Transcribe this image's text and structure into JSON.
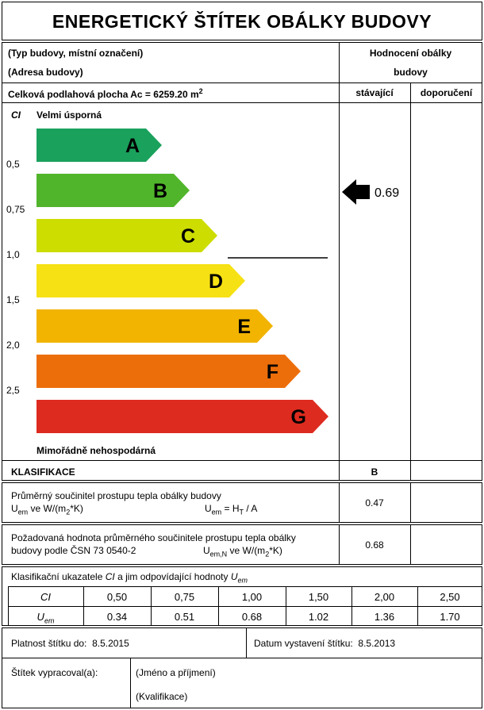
{
  "title": "ENERGETICKÝ ŠTÍTEK OBÁLKY BUDOVY",
  "header": {
    "building_type": "(Typ budovy, místní označení)",
    "address": "(Adresa budovy)",
    "floor_area": "Celková podlahová plocha Ac = 6259.20 m",
    "floor_area_sup": "2",
    "rating_header_1": "Hodnocení obálky",
    "rating_header_2": "budovy",
    "col_current": "stávající",
    "col_recommended": "doporučení"
  },
  "scale": {
    "ci_label": "CI",
    "top_label": "Velmi úsporná",
    "bottom_label": "Mimořádně nehospodárná",
    "ticks": [
      "0,5",
      "0,75",
      "1,0",
      "1,5",
      "2,0",
      "2,5"
    ],
    "classes": [
      {
        "letter": "A",
        "color": "#1aa15c"
      },
      {
        "letter": "B",
        "color": "#51b52b"
      },
      {
        "letter": "C",
        "color": "#cddd00"
      },
      {
        "letter": "D",
        "color": "#f6e114"
      },
      {
        "letter": "E",
        "color": "#f2b400"
      },
      {
        "letter": "F",
        "color": "#ec6e0b"
      },
      {
        "letter": "G",
        "color": "#de2b1f"
      }
    ],
    "current_value": "0.69",
    "current_class": "B"
  },
  "classification": {
    "label": "KLASIFIKACE",
    "current": "B"
  },
  "avg_u": {
    "line1": "Průměrný součinitel prostupu tepla obálky budovy",
    "u": "U",
    "em": "em",
    "units": " ve W/(m",
    "sq": "2",
    "units_end": "*K)",
    "formula_u": "U",
    "formula_em": "em",
    "formula_eq": " = H",
    "formula_t": "T",
    "formula_end": " / A",
    "value": "0.47"
  },
  "req_u": {
    "line1": "Požadovaná hodnota průměrného součinitele prostupu tepla obálky",
    "line2": "budovy podle ČSN 73 0540-2",
    "u": "U",
    "em": "em,N",
    "units": " ve W/(m",
    "sq": "2",
    "units_end": "*K)",
    "value": "0.68"
  },
  "class_table": {
    "caption_a": "Klasifikační ukazatele ",
    "caption_ci": "CI",
    "caption_b": " a jim odpovídající hodnoty ",
    "caption_u": "U",
    "caption_em": "em",
    "row1_label": "CI",
    "row2_label_u": "U",
    "row2_label_em": "em",
    "ci": [
      "0,50",
      "0,75",
      "1,00",
      "1,50",
      "2,00",
      "2,50"
    ],
    "uem": [
      "0.34",
      "0.51",
      "0.68",
      "1.02",
      "1.36",
      "1.70"
    ]
  },
  "footer": {
    "validity_label": "Platnost štítku do:",
    "validity_date": "8.5.2015",
    "issued_label": "Datum vystavení štítku:",
    "issued_date": "8.5.2013",
    "author_label": "Štítek vypracoval(a):",
    "name": "(Jméno a příjmení)",
    "qualification": "(Kvalifikace)"
  }
}
